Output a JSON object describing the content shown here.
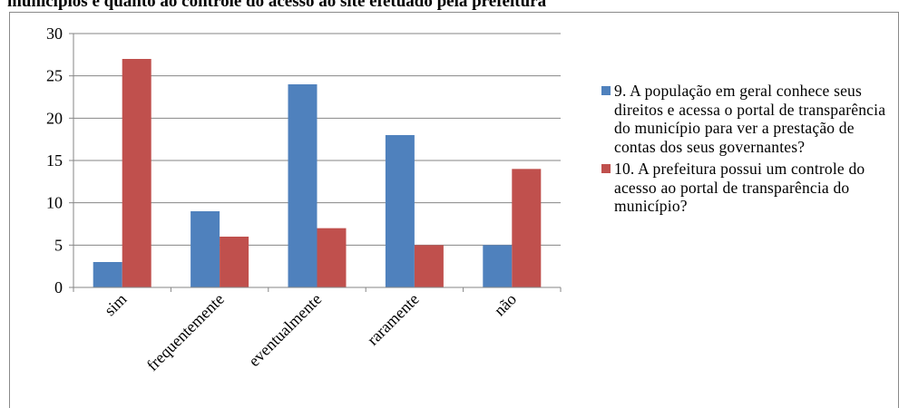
{
  "caption": "municípios e quanto ao controle do acesso ao site efetuado pela prefeitura",
  "colors": {
    "series1": "#4f81bd",
    "series2": "#c0504d",
    "grid": "#868686",
    "axis": "#868686"
  },
  "chart_data": {
    "type": "bar",
    "title": "",
    "xlabel": "",
    "ylabel": "",
    "ylim": [
      0,
      30
    ],
    "yticks": [
      0,
      5,
      10,
      15,
      20,
      25,
      30
    ],
    "grid": true,
    "legend_position": "right",
    "categories": [
      "sim",
      "frequentemente",
      "eventualmente",
      "raramente",
      "não"
    ],
    "series": [
      {
        "name": "9. A população em geral conhece seus direitos e acessa o portal de transparência do município para ver a prestação de contas dos seus governantes?",
        "values": [
          3,
          9,
          24,
          18,
          5
        ]
      },
      {
        "name": "10. A prefeitura possui um controle do acesso ao portal de transparência do município?",
        "values": [
          27,
          6,
          7,
          5,
          14
        ]
      }
    ]
  }
}
